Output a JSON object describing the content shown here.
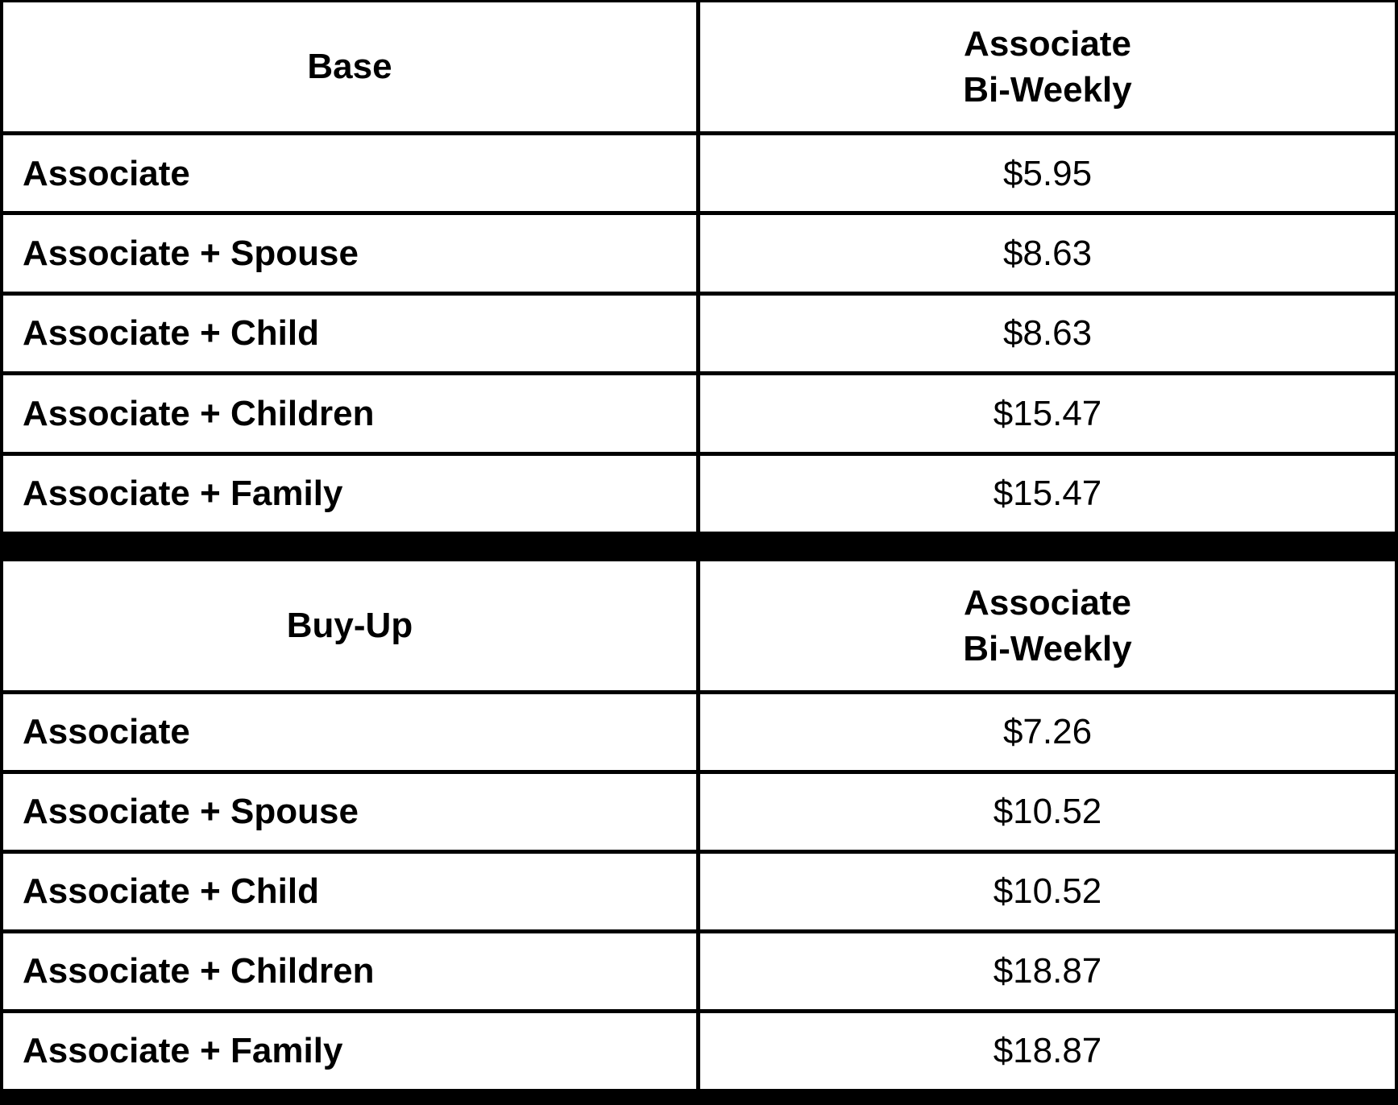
{
  "colors": {
    "border": "#000000",
    "text": "#000000",
    "cell_background": "#ffffff"
  },
  "tables": [
    {
      "plan_label": "Base",
      "rate_header_line1": "Associate",
      "rate_header_line2": "Bi-Weekly",
      "rows": [
        {
          "tier": "Associate",
          "rate": "$5.95"
        },
        {
          "tier": "Associate + Spouse",
          "rate": "$8.63"
        },
        {
          "tier": "Associate + Child",
          "rate": "$8.63"
        },
        {
          "tier": "Associate + Children",
          "rate": "$15.47"
        },
        {
          "tier": "Associate + Family",
          "rate": "$15.47"
        }
      ]
    },
    {
      "plan_label": "Buy-Up",
      "rate_header_line1": "Associate",
      "rate_header_line2": "Bi-Weekly",
      "rows": [
        {
          "tier": "Associate",
          "rate": "$7.26"
        },
        {
          "tier": "Associate + Spouse",
          "rate": "$10.52"
        },
        {
          "tier": "Associate + Child",
          "rate": "$10.52"
        },
        {
          "tier": "Associate + Children",
          "rate": "$18.87"
        },
        {
          "tier": "Associate + Family",
          "rate": "$18.87"
        }
      ]
    }
  ]
}
